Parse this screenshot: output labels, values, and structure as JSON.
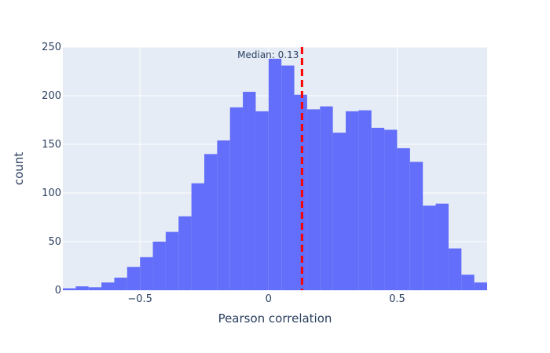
{
  "chart_data": {
    "type": "bar",
    "subtype": "histogram",
    "xlabel": "Pearson correlation",
    "ylabel": "count",
    "xlim": [
      -0.8,
      0.85
    ],
    "ylim": [
      0,
      250
    ],
    "x_ticks": [
      -0.5,
      0,
      0.5
    ],
    "x_tick_labels": [
      "−0.5",
      "0",
      "0.5"
    ],
    "y_ticks": [
      0,
      50,
      100,
      150,
      200,
      250
    ],
    "y_tick_labels": [
      "0",
      "50",
      "100",
      "150",
      "200",
      "250"
    ],
    "bin_start": -0.8,
    "bin_width": 0.05,
    "values": [
      2,
      4,
      3,
      8,
      13,
      24,
      34,
      50,
      60,
      76,
      110,
      140,
      154,
      188,
      204,
      184,
      238,
      231,
      201,
      186,
      189,
      162,
      184,
      185,
      167,
      165,
      146,
      132,
      87,
      89,
      43,
      16,
      8
    ],
    "bar_color": "#636efa",
    "plot_bgcolor": "#e5ecf6",
    "grid": true,
    "median_line": {
      "x": 0.13,
      "color": "#ff0000",
      "style": "dash"
    },
    "annotation": "Median: 0.13"
  }
}
